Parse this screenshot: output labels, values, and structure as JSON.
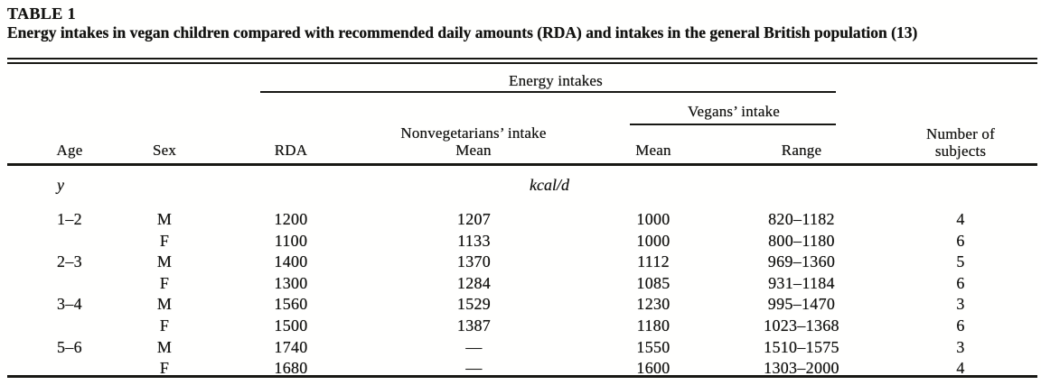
{
  "table": {
    "label": "TABLE 1",
    "caption": "Energy intakes in vegan children compared with recommended daily amounts (RDA) and intakes in the general British population (13)",
    "header": {
      "group_energy": "Energy intakes",
      "group_vegans": "Vegans’ intake",
      "col_age": "Age",
      "col_sex": "Sex",
      "col_rda": "RDA",
      "col_nonveg_intake": "Nonvegetarians’ intake",
      "col_nonveg_mean": "Mean",
      "col_vegan_mean": "Mean",
      "col_vegan_range": "Range",
      "col_subjects_line1": "Number of",
      "col_subjects_line2": "subjects"
    },
    "units": {
      "age": "y",
      "energy": "kcal/d"
    },
    "rows": [
      {
        "age": "1–2",
        "sex": "M",
        "rda": "1200",
        "nonveg_mean": "1207",
        "vegan_mean": "1000",
        "vegan_range": "820–1182",
        "n": "4"
      },
      {
        "age": "",
        "sex": "F",
        "rda": "1100",
        "nonveg_mean": "1133",
        "vegan_mean": "1000",
        "vegan_range": "800–1180",
        "n": "6"
      },
      {
        "age": "2–3",
        "sex": "M",
        "rda": "1400",
        "nonveg_mean": "1370",
        "vegan_mean": "1112",
        "vegan_range": "969–1360",
        "n": "5"
      },
      {
        "age": "",
        "sex": "F",
        "rda": "1300",
        "nonveg_mean": "1284",
        "vegan_mean": "1085",
        "vegan_range": "931–1184",
        "n": "6"
      },
      {
        "age": "3–4",
        "sex": "M",
        "rda": "1560",
        "nonveg_mean": "1529",
        "vegan_mean": "1230",
        "vegan_range": "995–1470",
        "n": "3"
      },
      {
        "age": "",
        "sex": "F",
        "rda": "1500",
        "nonveg_mean": "1387",
        "vegan_mean": "1180",
        "vegan_range": "1023–1368",
        "n": "6"
      },
      {
        "age": "5–6",
        "sex": "M",
        "rda": "1740",
        "nonveg_mean": "—",
        "vegan_mean": "1550",
        "vegan_range": "1510–1575",
        "n": "3"
      },
      {
        "age": "",
        "sex": "F",
        "rda": "1680",
        "nonveg_mean": "—",
        "vegan_mean": "1600",
        "vegan_range": "1303–2000",
        "n": "4"
      }
    ],
    "colors": {
      "ink": "#181814",
      "paper": "#fffffe"
    }
  }
}
